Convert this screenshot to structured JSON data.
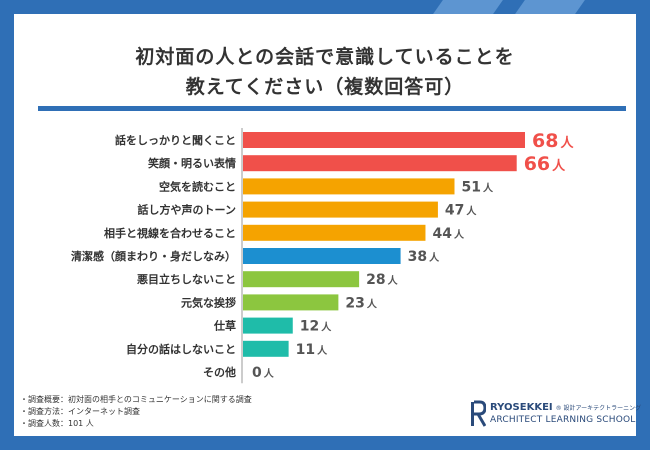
{
  "title": {
    "line1": "初対面の人との会話で意識していることを",
    "line2": "教えてください（複数回答可）"
  },
  "chart_data": {
    "type": "bar",
    "orientation": "horizontal",
    "title": "初対面の人との会話で意識していることを教えてください（複数回答可）",
    "unit": "人",
    "xlim": [
      0,
      70
    ],
    "categories": [
      "話をしっかりと聞くこと",
      "笑顔・明るい表情",
      "空気を読むこと",
      "話し方や声のトーン",
      "相手と視線を合わせること",
      "清潔感（顔まわり・身だしなみ）",
      "悪目立ちしないこと",
      "元気な挨拶",
      "仕草",
      "自分の話はしないこと",
      "その他"
    ],
    "values": [
      68,
      66,
      51,
      47,
      44,
      38,
      28,
      23,
      12,
      11,
      0
    ],
    "colors": [
      "#f0504a",
      "#f0504a",
      "#f5a300",
      "#f5a300",
      "#f5a300",
      "#1c8fd0",
      "#8cc63f",
      "#8cc63f",
      "#1fbca9",
      "#1fbca9",
      "#b0b0b0"
    ],
    "value_label_colors": [
      "#f0504a",
      "#f0504a",
      "#555555",
      "#555555",
      "#555555",
      "#555555",
      "#555555",
      "#555555",
      "#555555",
      "#555555",
      "#555555"
    ]
  },
  "footnotes": [
    "・調査概要：初対面の相手とのコミュニケーションに関する調査",
    "・調査方法：インターネット調査",
    "・調査人数：101 人"
  ],
  "logo": {
    "name": "RYOSEKKEI",
    "jp": "® 設計アーキテクトラーニング",
    "school": "ARCHITECT LEARNING SCHOOL"
  }
}
